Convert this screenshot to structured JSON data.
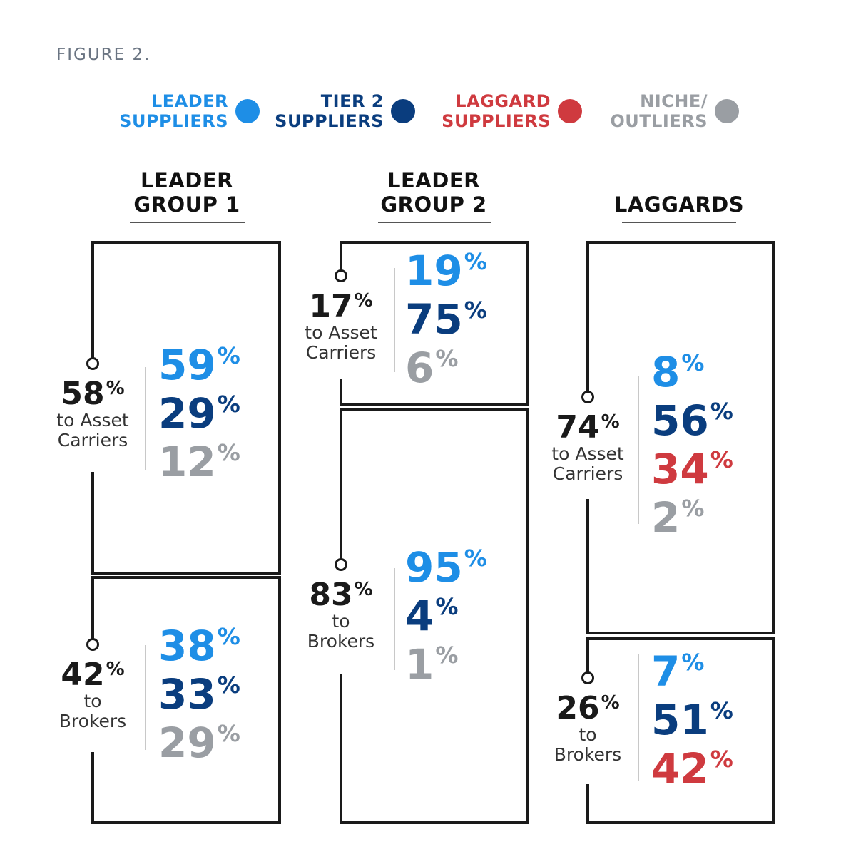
{
  "figure_label": "FIGURE 2.",
  "colors": {
    "leader": "#1e8ee6",
    "tier2": "#0a3d7e",
    "laggard": "#cf3a3f",
    "niche": "#9a9ea3",
    "line": "#1a1a1a"
  },
  "legend": [
    {
      "line1": "LEADER",
      "line2": "SUPPLIERS",
      "color": "#1e8ee6",
      "icon": "dot-icon"
    },
    {
      "line1": "TIER 2",
      "line2": "SUPPLIERS",
      "color": "#0a3d7e",
      "icon": "dot-icon"
    },
    {
      "line1": "LAGGARD",
      "line2": "SUPPLIERS",
      "color": "#cf3a3f",
      "icon": "dot-icon"
    },
    {
      "line1": "NICHE/",
      "line2": "OUTLIERS",
      "color": "#9a9ea3",
      "icon": "dot-icon"
    }
  ],
  "groups": [
    {
      "title1": "LEADER",
      "title2": "GROUP 1",
      "sections": [
        {
          "share": "58",
          "desc1": "to Asset",
          "desc2": "Carriers",
          "values": [
            {
              "v": "59",
              "c": "leader"
            },
            {
              "v": "29",
              "c": "tier2"
            },
            {
              "v": "12",
              "c": "niche"
            }
          ]
        },
        {
          "share": "42",
          "desc1": "to",
          "desc2": "Brokers",
          "values": [
            {
              "v": "38",
              "c": "leader"
            },
            {
              "v": "33",
              "c": "tier2"
            },
            {
              "v": "29",
              "c": "niche"
            }
          ]
        }
      ]
    },
    {
      "title1": "LEADER",
      "title2": "GROUP 2",
      "sections": [
        {
          "share": "17",
          "desc1": "to Asset",
          "desc2": "Carriers",
          "values": [
            {
              "v": "19",
              "c": "leader"
            },
            {
              "v": "75",
              "c": "tier2"
            },
            {
              "v": "6",
              "c": "niche"
            }
          ]
        },
        {
          "share": "83",
          "desc1": "to",
          "desc2": "Brokers",
          "values": [
            {
              "v": "95",
              "c": "leader"
            },
            {
              "v": "4",
              "c": "tier2"
            },
            {
              "v": "1",
              "c": "niche"
            }
          ]
        }
      ]
    },
    {
      "title1": "",
      "title2": "LAGGARDS",
      "sections": [
        {
          "share": "74",
          "desc1": "to Asset",
          "desc2": "Carriers",
          "values": [
            {
              "v": "8",
              "c": "leader"
            },
            {
              "v": "56",
              "c": "tier2"
            },
            {
              "v": "34",
              "c": "laggard"
            },
            {
              "v": "2",
              "c": "niche"
            }
          ]
        },
        {
          "share": "26",
          "desc1": "to",
          "desc2": "Brokers",
          "values": [
            {
              "v": "7",
              "c": "leader"
            },
            {
              "v": "51",
              "c": "tier2"
            },
            {
              "v": "42",
              "c": "laggard"
            }
          ]
        }
      ]
    }
  ]
}
